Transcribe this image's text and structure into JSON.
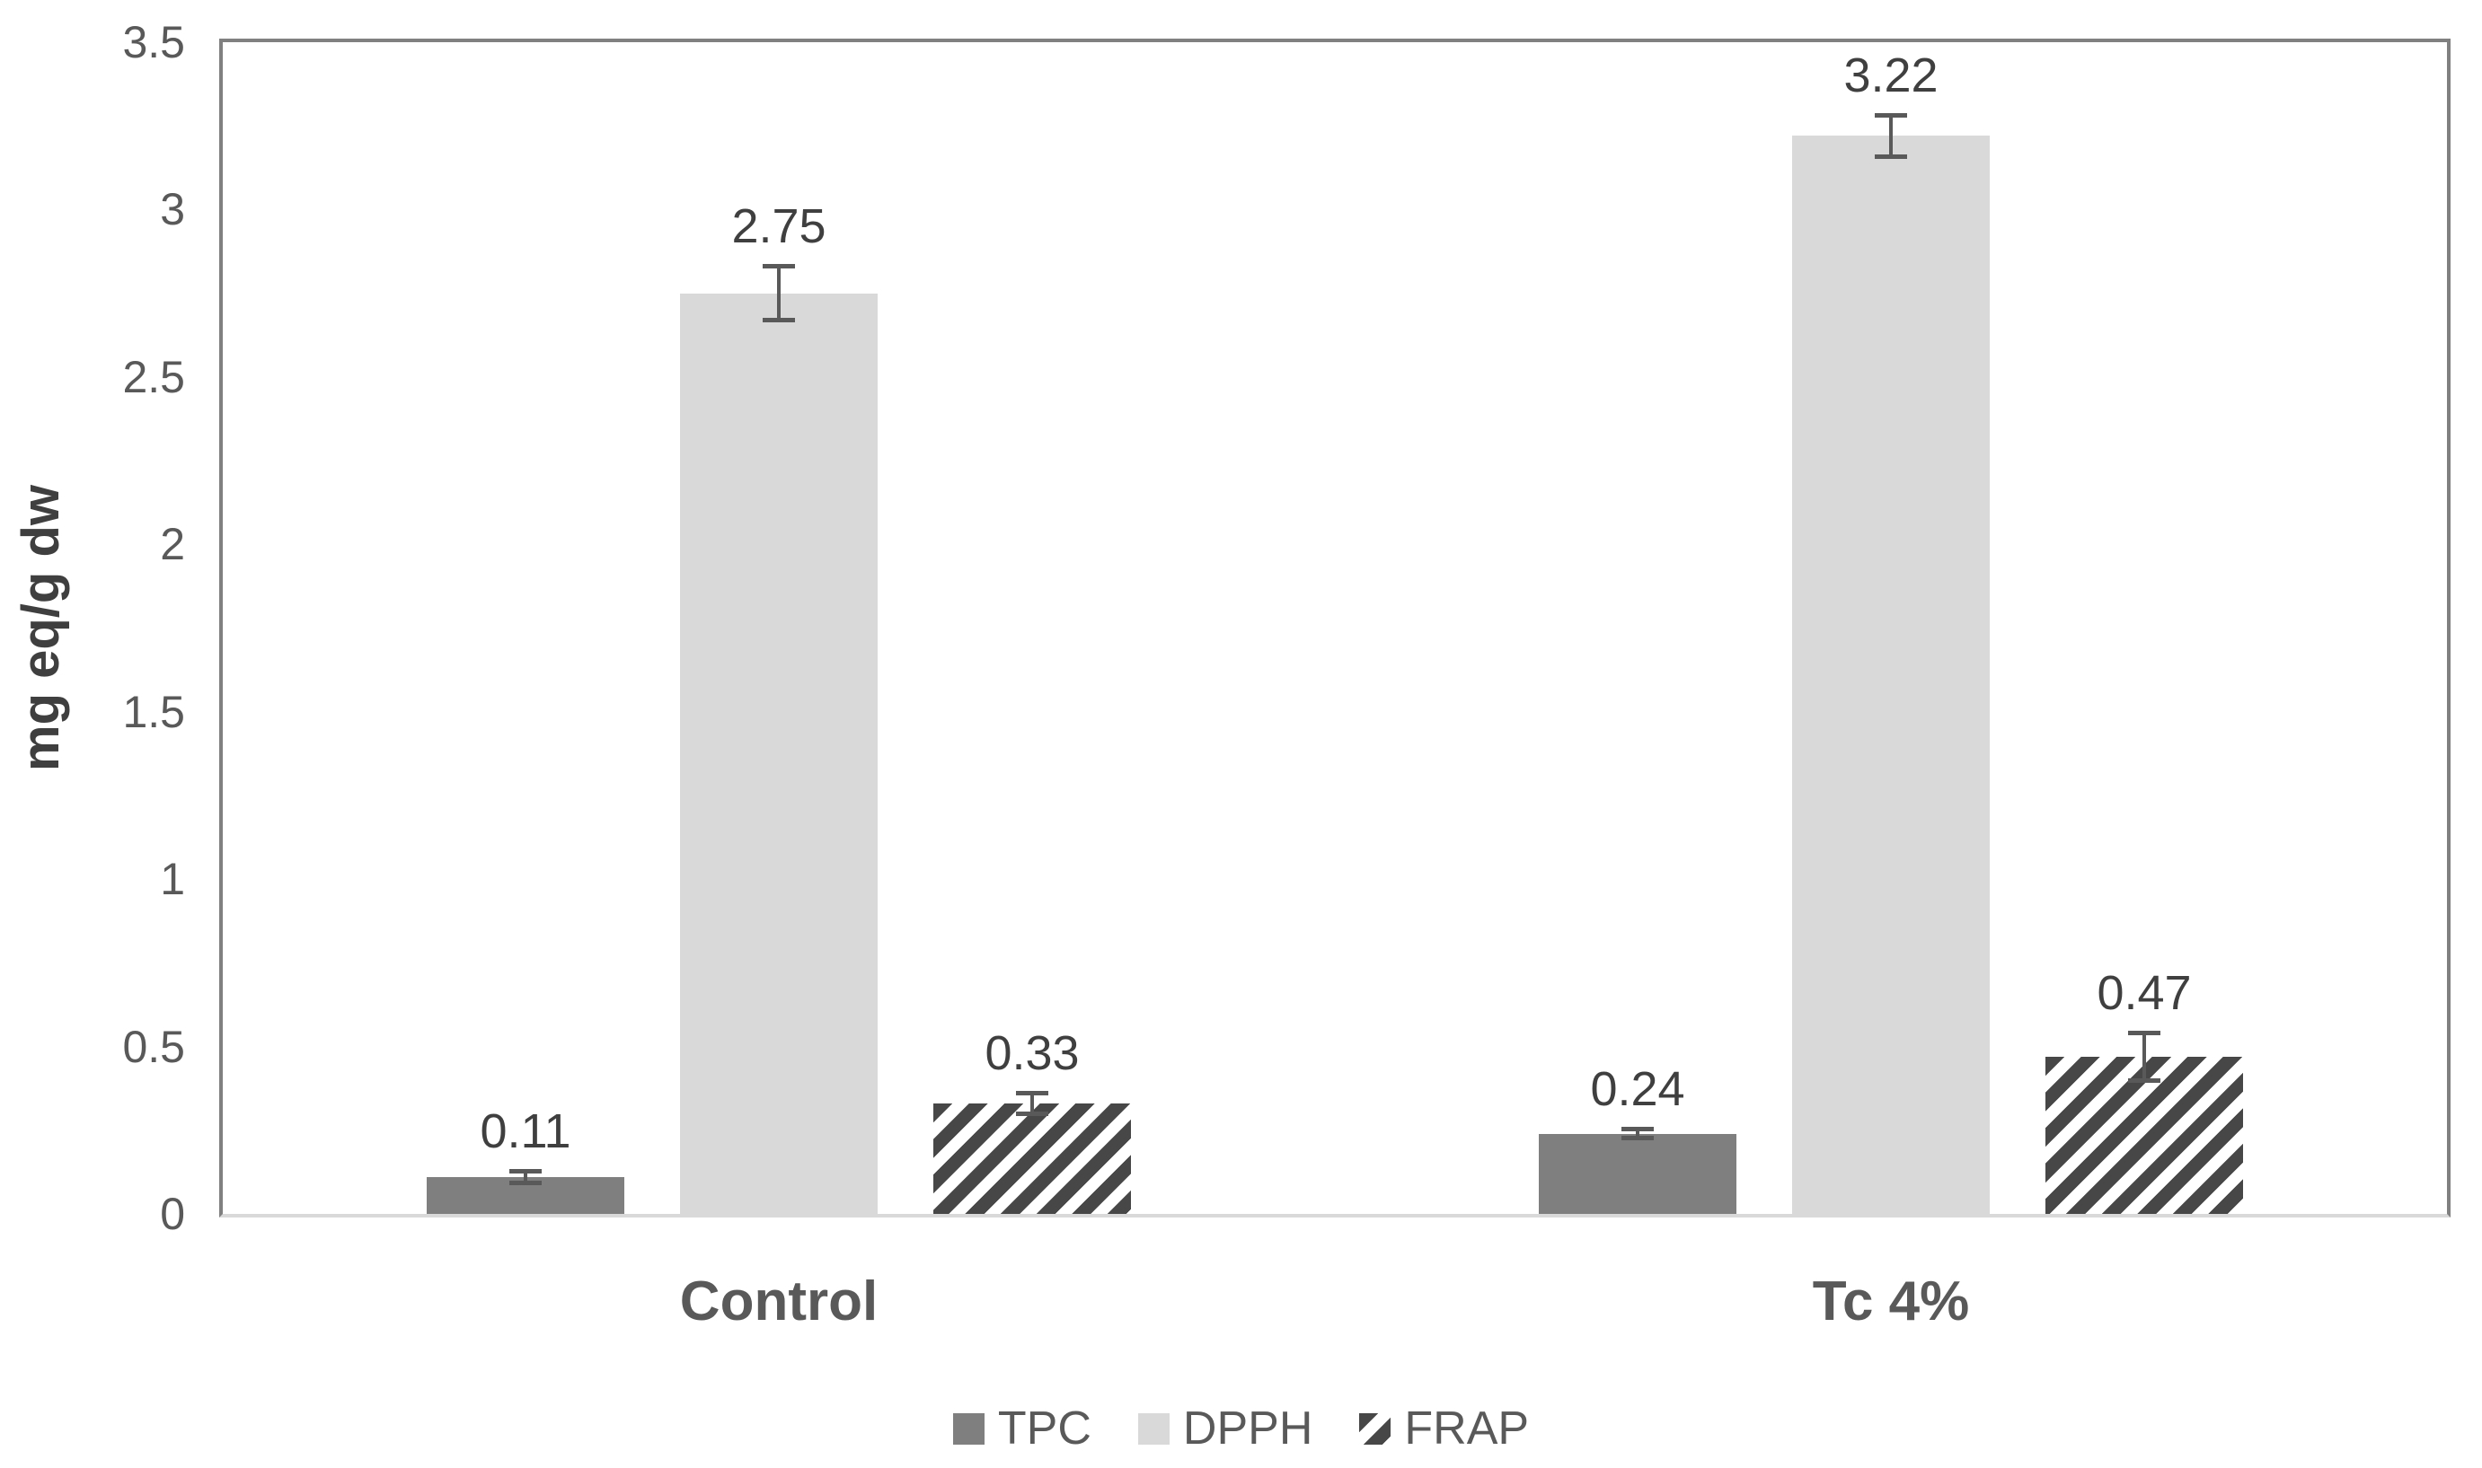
{
  "chart_data": {
    "type": "bar",
    "ylabel": "mg eq/g dw",
    "ylim": [
      0,
      3.5
    ],
    "yticks": [
      {
        "value": 0,
        "label": "0"
      },
      {
        "value": 0.5,
        "label": "0.5"
      },
      {
        "value": 1,
        "label": "1"
      },
      {
        "value": 1.5,
        "label": "1.5"
      },
      {
        "value": 2,
        "label": "2"
      },
      {
        "value": 2.5,
        "label": "2.5"
      },
      {
        "value": 3,
        "label": "3"
      },
      {
        "value": 3.5,
        "label": "3.5"
      }
    ],
    "categories": [
      "Control",
      "Tc 4%"
    ],
    "series": [
      {
        "name": "TPC",
        "pattern": "solid",
        "color": "#7f7f7f",
        "values": [
          0.11,
          0.24
        ],
        "errors": [
          0.015,
          0.012
        ],
        "labels": [
          "0.11",
          "0.24"
        ]
      },
      {
        "name": "DPPH",
        "pattern": "solid",
        "color": "#d9d9d9",
        "values": [
          2.75,
          3.22
        ],
        "errors": [
          0.08,
          0.06
        ],
        "labels": [
          "2.75",
          "3.22"
        ]
      },
      {
        "name": "FRAP",
        "pattern": "hatch",
        "color": "#474747",
        "values": [
          0.33,
          0.47
        ],
        "errors": [
          0.03,
          0.07
        ],
        "labels": [
          "0.33",
          "0.47"
        ]
      }
    ],
    "grid": false,
    "legend_position": "bottom",
    "styles": {
      "plot_border_color": "#808080",
      "baseline_color": "#d9d9d9",
      "tick_label_color": "#595959",
      "data_label_color": "#3f3f3f",
      "category_label_color": "#595959",
      "legend_text_color": "#595959",
      "error_bar_color": "#595959",
      "hatch_background": "#ffffff"
    }
  }
}
